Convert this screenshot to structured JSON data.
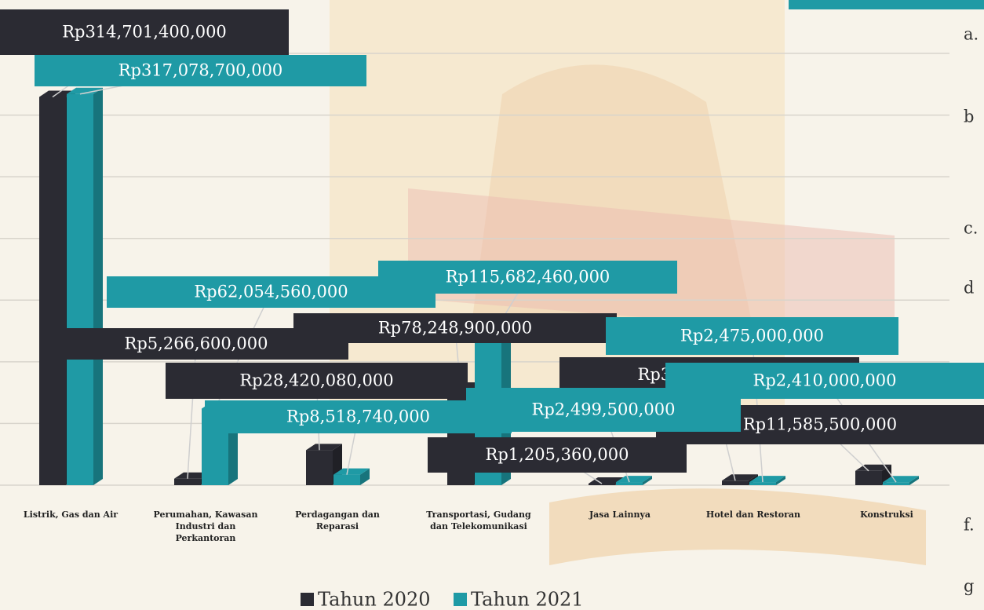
{
  "chart_data": {
    "type": "bar3d",
    "categories": [
      "Listrik, Gas dan Air",
      "Perumahan, Kawasan Industri dan Perkantoran",
      "Perdagangan dan Reparasi",
      "Transportasi, Gudang dan Telekomunikasi",
      "Jasa Lainnya",
      "Hotel dan Restoran",
      "Konstruksi"
    ],
    "series": [
      {
        "name": "Tahun 2020",
        "color": "#2b2b33",
        "values": [
          314701400000,
          5266600000,
          28420080000,
          78248900000,
          1205360000,
          3647340000,
          11585500000
        ],
        "value_labels": [
          "Rp314,701,400,000",
          "Rp5,266,600,000",
          "Rp28,420,080,000",
          "Rp78,248,900,000",
          "Rp1,205,360,000",
          "Rp3,647,340,000",
          "Rp11,585,500,000"
        ]
      },
      {
        "name": "Tahun 2021",
        "color": "#1f9aa5",
        "values": [
          317078700000,
          62054560000,
          8518740000,
          115682460000,
          2499500000,
          2475000000,
          2410000000
        ],
        "value_labels": [
          "Rp317,078,700,000",
          "Rp62,054,560,000",
          "Rp8,518,740,000",
          "Rp115,682,460,000",
          "Rp2,499,500,000",
          "Rp2,475,000,000",
          "Rp2,410,000,000"
        ]
      }
    ],
    "ylim": [
      0,
      350000000000
    ],
    "yticks": [
      0,
      50000000000,
      100000000000,
      150000000000,
      200000000000,
      250000000000,
      300000000000,
      350000000000
    ],
    "grid": true
  },
  "side_list": [
    "a.",
    "b",
    "c.",
    "d",
    "f.",
    "g"
  ]
}
